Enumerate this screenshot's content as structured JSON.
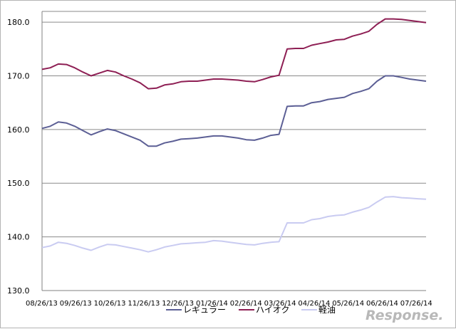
{
  "chart_data": {
    "type": "line",
    "title": "",
    "xlabel": "",
    "ylabel": "",
    "ylim": [
      130,
      182
    ],
    "yticks": [
      "130.0",
      "140.0",
      "150.0",
      "160.0",
      "170.0",
      "180.0"
    ],
    "x_tick_labels": [
      "08/26/13",
      "09/26/13",
      "10/26/13",
      "11/26/13",
      "12/26/13",
      "01/26/14",
      "02/26/14",
      "03/26/14",
      "04/26/14",
      "05/26/14",
      "06/26/14",
      "07/26/14"
    ],
    "grid": true,
    "legend_position": "bottom",
    "series": [
      {
        "name": "レギュラー",
        "color": "#5c5f95",
        "values": [
          160.2,
          160.6,
          161.4,
          161.2,
          160.6,
          159.8,
          159.0,
          159.6,
          160.1,
          159.8,
          159.2,
          158.6,
          158.0,
          156.9,
          156.9,
          157.5,
          157.8,
          158.2,
          158.3,
          158.4,
          158.6,
          158.8,
          158.8,
          158.6,
          158.4,
          158.1,
          158.0,
          158.4,
          158.9,
          159.1,
          164.3,
          164.4,
          164.4,
          165.0,
          165.2,
          165.6,
          165.8,
          166.0,
          166.7,
          167.1,
          167.6,
          169.0,
          170.0,
          170.0,
          169.7,
          169.4,
          169.2,
          169.0
        ]
      },
      {
        "name": "ハイオク",
        "color": "#8e1f54",
        "values": [
          171.2,
          171.5,
          172.2,
          172.1,
          171.5,
          170.7,
          170.0,
          170.5,
          171.0,
          170.7,
          170.0,
          169.4,
          168.7,
          167.6,
          167.7,
          168.3,
          168.5,
          168.9,
          169.0,
          169.0,
          169.2,
          169.4,
          169.4,
          169.3,
          169.2,
          169.0,
          168.9,
          169.3,
          169.8,
          170.1,
          175.0,
          175.1,
          175.1,
          175.7,
          176.0,
          176.3,
          176.7,
          176.8,
          177.4,
          177.8,
          178.3,
          179.6,
          180.6,
          180.6,
          180.5,
          180.3,
          180.1,
          179.9
        ]
      },
      {
        "name": "軽油",
        "color": "#c9cbf1",
        "values": [
          138.0,
          138.3,
          139.0,
          138.8,
          138.4,
          137.9,
          137.5,
          138.1,
          138.6,
          138.5,
          138.2,
          137.9,
          137.6,
          137.2,
          137.6,
          138.1,
          138.4,
          138.7,
          138.8,
          138.9,
          139.0,
          139.3,
          139.2,
          139.0,
          138.8,
          138.6,
          138.5,
          138.8,
          139.0,
          139.1,
          142.6,
          142.6,
          142.6,
          143.2,
          143.4,
          143.8,
          144.0,
          144.1,
          144.6,
          145.0,
          145.5,
          146.5,
          147.4,
          147.5,
          147.3,
          147.2,
          147.1,
          147.0
        ]
      }
    ]
  },
  "watermark": "Response."
}
